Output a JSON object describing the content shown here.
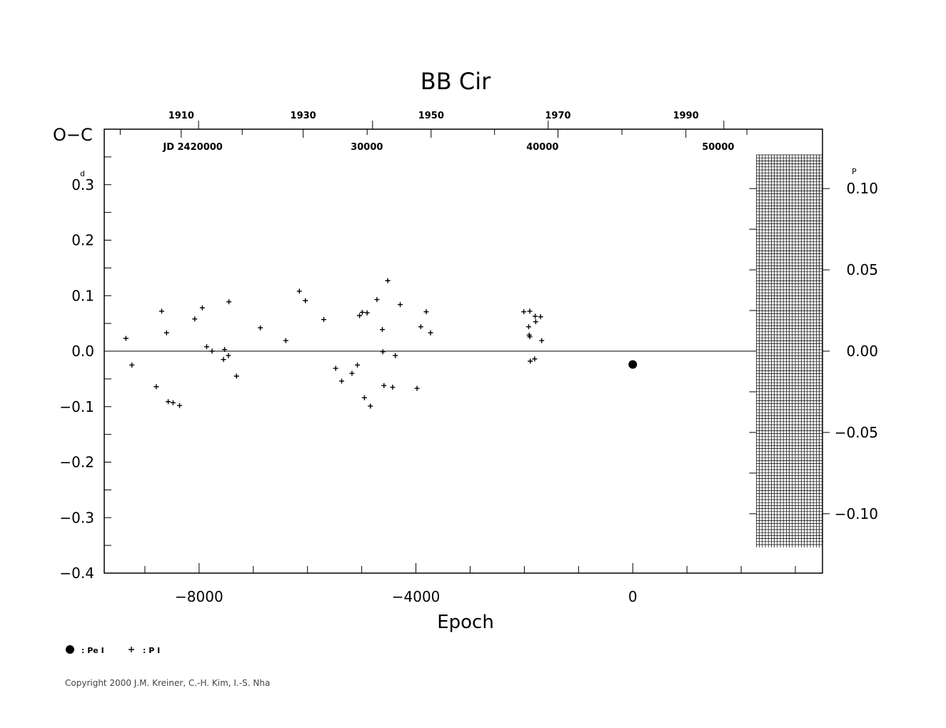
{
  "chart_data": {
    "type": "scatter",
    "title": "BB  Cir",
    "ylabel": "O−C",
    "ylabel_unit": "d",
    "xlabel": "Epoch",
    "xlim": [
      -9750,
      3500
    ],
    "ylim": [
      -0.4,
      0.4
    ],
    "y_ticks": [
      {
        "value": 0.3,
        "label": "0.3"
      },
      {
        "value": 0.2,
        "label": "0.2"
      },
      {
        "value": 0.1,
        "label": "0.1"
      },
      {
        "value": 0.0,
        "label": "0.0"
      },
      {
        "value": -0.1,
        "label": "−0.1"
      },
      {
        "value": -0.2,
        "label": "−0.2"
      },
      {
        "value": -0.3,
        "label": "−0.3"
      },
      {
        "value": -0.4,
        "label": "−0.4"
      }
    ],
    "x_ticks": [
      {
        "value": -8000,
        "label": "−8000"
      },
      {
        "value": -4000,
        "label": "−4000"
      },
      {
        "value": 0,
        "label": "0"
      }
    ],
    "right_axis": {
      "unit": "P",
      "ticks": [
        {
          "value": 0.1,
          "label": "0.10"
        },
        {
          "value": 0.05,
          "label": "0.05"
        },
        {
          "value": 0.0,
          "label": "0.00"
        },
        {
          "value": -0.05,
          "label": "−0.05"
        },
        {
          "value": -0.1,
          "label": "−0.10"
        }
      ],
      "period_days": 2.93
    },
    "top_year_ticks": [
      {
        "label": "1910",
        "epoch": -8330
      },
      {
        "label": "1930",
        "epoch": -6080
      },
      {
        "label": "1950",
        "epoch": -3720
      },
      {
        "label": "1970",
        "epoch": -1380
      },
      {
        "label": "1990",
        "epoch": 980
      }
    ],
    "top_jd_ticks": [
      {
        "label": "JD  2420000",
        "epoch": -8010
      },
      {
        "label": "30000",
        "epoch": -4800
      },
      {
        "label": "40000",
        "epoch": -1560
      },
      {
        "label": "50000",
        "epoch": 1680
      }
    ],
    "series": [
      {
        "name": "Pe I",
        "marker": "filled-circle",
        "points": [
          [
            0,
            -0.024
          ]
        ]
      },
      {
        "name": "P I",
        "marker": "plus",
        "points": [
          [
            -9350,
            0.023
          ],
          [
            -9240,
            -0.025
          ],
          [
            -8790,
            -0.064
          ],
          [
            -8690,
            0.072
          ],
          [
            -8600,
            0.033
          ],
          [
            -8570,
            -0.091
          ],
          [
            -8480,
            -0.093
          ],
          [
            -8360,
            -0.098
          ],
          [
            -8080,
            0.058
          ],
          [
            -7940,
            0.078
          ],
          [
            -7860,
            0.008
          ],
          [
            -7760,
            0.0
          ],
          [
            -7550,
            -0.015
          ],
          [
            -7530,
            0.003
          ],
          [
            -7460,
            -0.008
          ],
          [
            -7450,
            0.089
          ],
          [
            -7310,
            -0.045
          ],
          [
            -6870,
            0.042
          ],
          [
            -6400,
            0.019
          ],
          [
            -6150,
            0.108
          ],
          [
            -6040,
            0.091
          ],
          [
            -5700,
            0.057
          ],
          [
            -5480,
            -0.031
          ],
          [
            -5370,
            -0.054
          ],
          [
            -5180,
            -0.04
          ],
          [
            -5080,
            -0.025
          ],
          [
            -5040,
            0.064
          ],
          [
            -4990,
            0.07
          ],
          [
            -4950,
            -0.084
          ],
          [
            -4900,
            0.069
          ],
          [
            -4840,
            -0.099
          ],
          [
            -4720,
            0.093
          ],
          [
            -4620,
            0.039
          ],
          [
            -4610,
            -0.001
          ],
          [
            -4590,
            -0.062
          ],
          [
            -4520,
            0.127
          ],
          [
            -4430,
            -0.065
          ],
          [
            -4380,
            -0.008
          ],
          [
            -4290,
            0.084
          ],
          [
            -3980,
            -0.067
          ],
          [
            -3910,
            0.044
          ],
          [
            -3810,
            0.071
          ],
          [
            -3730,
            0.033
          ],
          [
            -2010,
            0.071
          ],
          [
            -1920,
            0.044
          ],
          [
            -1910,
            0.029
          ],
          [
            -1900,
            0.026
          ],
          [
            -1900,
            0.072
          ],
          [
            -1890,
            -0.018
          ],
          [
            -1810,
            -0.014
          ],
          [
            -1800,
            0.063
          ],
          [
            -1790,
            0.053
          ],
          [
            -1700,
            0.062
          ],
          [
            -1680,
            0.019
          ]
        ]
      }
    ],
    "legend": [
      {
        "marker": "filled-circle",
        "label": ": Pe I"
      },
      {
        "marker": "plus",
        "label": ": P I"
      }
    ],
    "legend_placement": "bottom-left",
    "zero_line": true,
    "hatched_region": {
      "epoch_from": 2280,
      "epoch_to": 3500
    }
  },
  "footer": {
    "copyright": "Copyright 2000 J.M. Kreiner, C.-H. Kim, I.-S. Nha"
  }
}
